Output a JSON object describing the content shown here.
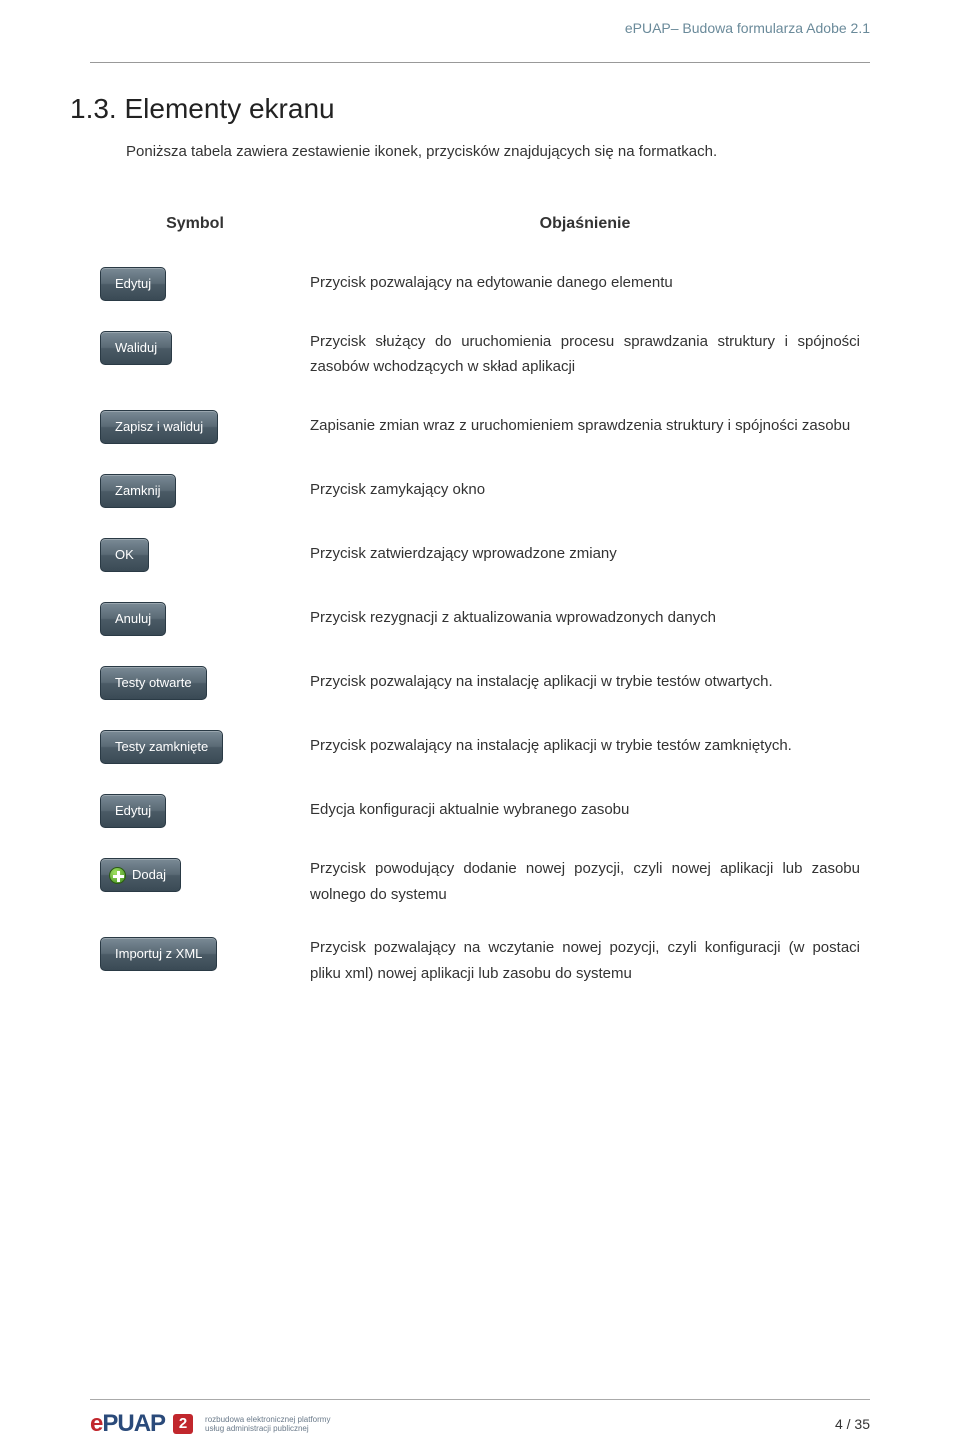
{
  "doc_header": "ePUAP– Budowa formularza Adobe  2.1",
  "section": {
    "title": "1.3.  Elementy ekranu",
    "intro": "Poniższa tabela zawiera zestawienie ikonek, przycisków znajdujących się na formatkach."
  },
  "table": {
    "col_symbol": "Symbol",
    "col_desc": "Objaśnienie",
    "rows": [
      {
        "btn": "Edytuj",
        "desc": "Przycisk pozwalający na edytowanie danego elementu"
      },
      {
        "btn": "Waliduj",
        "desc": "Przycisk służący do uruchomienia procesu sprawdzania struktury i spójności zasobów wchodzących w skład aplikacji"
      },
      {
        "btn": "Zapisz i waliduj",
        "desc": "Zapisanie zmian wraz z uruchomieniem sprawdzenia struktury i spójności zasobu"
      },
      {
        "btn": "Zamknij",
        "desc": "Przycisk zamykający okno"
      },
      {
        "btn": "OK",
        "desc": "Przycisk zatwierdzający wprowadzone zmiany"
      },
      {
        "btn": "Anuluj",
        "desc": "Przycisk rezygnacji z aktualizowania wprowadzonych danych"
      },
      {
        "btn": "Testy otwarte",
        "desc": "Przycisk pozwalający na instalację aplikacji w trybie testów otwartych."
      },
      {
        "btn": "Testy zamknięte",
        "desc": "Przycisk pozwalający na instalację aplikacji w trybie testów zamkniętych."
      },
      {
        "btn": "Edytuj",
        "desc": "Edycja konfiguracji aktualnie wybranego zasobu"
      },
      {
        "btn": "Dodaj",
        "icon": "plus",
        "desc": "Przycisk powodujący dodanie nowej pozycji, czyli nowej aplikacji lub zasobu wolnego do systemu"
      },
      {
        "btn": "Importuj z XML",
        "desc": "Przycisk pozwalający na wczytanie nowej pozycji, czyli konfiguracji (w postaci pliku xml) nowej aplikacji lub zasobu do systemu"
      }
    ]
  },
  "footer": {
    "logo_e": "e",
    "logo_puap": "PUAP",
    "logo_badge": "2",
    "logo_sub_line1": "rozbudowa elektronicznej platformy",
    "logo_sub_line2": "usług administracji publicznej",
    "page_num": "4 / 35"
  }
}
